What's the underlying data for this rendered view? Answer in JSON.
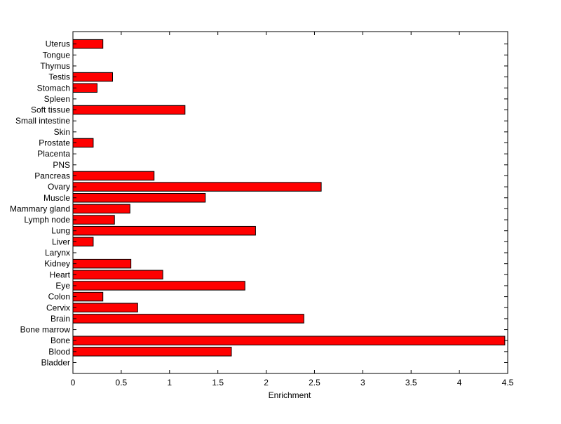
{
  "chart_data": {
    "type": "bar",
    "orientation": "horizontal",
    "categories": [
      "Bladder",
      "Blood",
      "Bone",
      "Bone marrow",
      "Brain",
      "Cervix",
      "Colon",
      "Eye",
      "Heart",
      "Kidney",
      "Larynx",
      "Liver",
      "Lung",
      "Lymph node",
      "Mammary gland",
      "Muscle",
      "Ovary",
      "Pancreas",
      "PNS",
      "Placenta",
      "Prostate",
      "Skin",
      "Small intestine",
      "Soft tissue",
      "Spleen",
      "Stomach",
      "Testis",
      "Thymus",
      "Tongue",
      "Uterus"
    ],
    "values": [
      0,
      1.64,
      4.47,
      0,
      2.39,
      0.67,
      0.31,
      1.78,
      0.93,
      0.6,
      0,
      0.21,
      1.89,
      0.43,
      0.59,
      1.37,
      2.57,
      0.84,
      0,
      0,
      0.21,
      0,
      0,
      1.16,
      0,
      0.25,
      0.41,
      0,
      0,
      0.31
    ],
    "xlabel": "Enrichment",
    "ylabel": "",
    "title": "",
    "xlim": [
      0,
      4.5
    ],
    "xticks": [
      0,
      0.5,
      1,
      1.5,
      2,
      2.5,
      3,
      3.5,
      4,
      4.5
    ],
    "xtick_labels": [
      "0",
      "0.5",
      "1",
      "1.5",
      "2",
      "2.5",
      "3",
      "3.5",
      "4",
      "4.5"
    ],
    "grid": false,
    "colors": {
      "bar": "#ff0000",
      "bar_edge": "#000000",
      "axes": "#000000",
      "background": "#ffffff"
    }
  }
}
